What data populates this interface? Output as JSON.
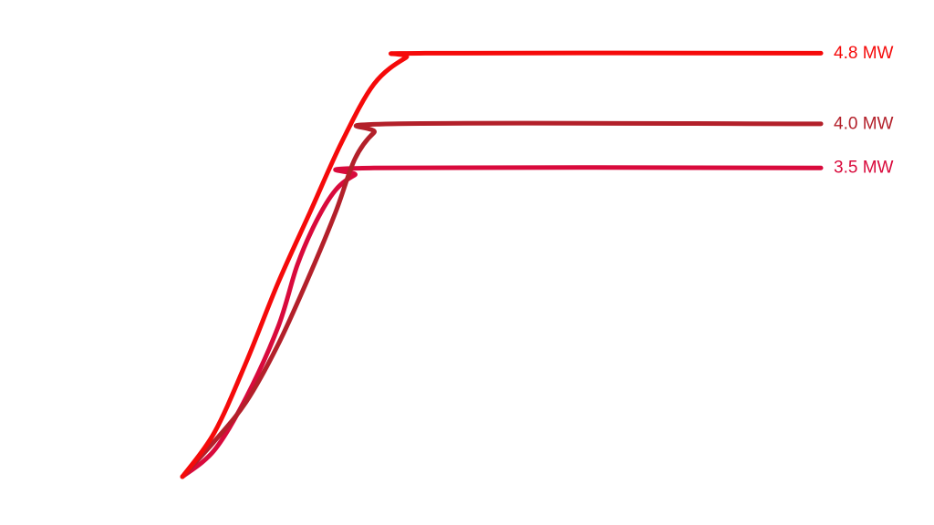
{
  "chart_data": {
    "type": "line",
    "title": "",
    "xlabel": "",
    "ylabel": "",
    "xlim": [
      0,
      100
    ],
    "ylim": [
      0,
      5.3
    ],
    "grid": false,
    "legend": "none",
    "series": [
      {
        "name": "3.5 MW",
        "color": "#d90a3c",
        "points": [
          [
            0,
            0
          ],
          [
            5,
            0.3
          ],
          [
            10,
            0.9
          ],
          [
            15,
            1.7
          ],
          [
            18,
            2.4
          ],
          [
            21,
            2.9
          ],
          [
            24,
            3.25
          ],
          [
            27,
            3.42
          ],
          [
            30,
            3.5
          ],
          [
            100,
            3.5
          ]
        ]
      },
      {
        "name": "4.0 MW",
        "color": "#b3202a",
        "points": [
          [
            0,
            0
          ],
          [
            5,
            0.4
          ],
          [
            10,
            0.85
          ],
          [
            15,
            1.5
          ],
          [
            20,
            2.3
          ],
          [
            24,
            3.0
          ],
          [
            27,
            3.6
          ],
          [
            30,
            3.9
          ],
          [
            33,
            4.0
          ],
          [
            100,
            4.0
          ]
        ]
      },
      {
        "name": "4.8 MW",
        "color": "#f50a0a",
        "points": [
          [
            0,
            0
          ],
          [
            5,
            0.5
          ],
          [
            10,
            1.3
          ],
          [
            15,
            2.2
          ],
          [
            20,
            3.0
          ],
          [
            25,
            3.8
          ],
          [
            30,
            4.45
          ],
          [
            35,
            4.75
          ],
          [
            38,
            4.8
          ],
          [
            100,
            4.8
          ]
        ]
      }
    ]
  }
}
